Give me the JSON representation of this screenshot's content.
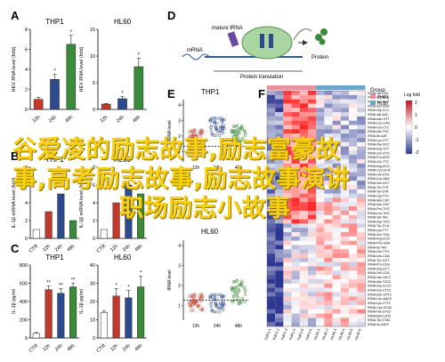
{
  "panel_letters": {
    "A": "A",
    "B": "B",
    "C": "C",
    "D": "D",
    "E": "E",
    "F": "F"
  },
  "panelA": {
    "ylabel": "HEV RNA level (fold)",
    "left": {
      "title": "THP1",
      "categories": [
        "12h",
        "24h",
        "48h"
      ],
      "values": [
        1.0,
        3.0,
        6.5
      ],
      "errors": [
        0.2,
        0.5,
        0.9
      ],
      "yticks": [
        "0",
        "2",
        "4",
        "6",
        "8"
      ],
      "colors": [
        "#c0392b",
        "#2e4a8f",
        "#3a8a3a"
      ],
      "stars": [
        "",
        "*",
        "*"
      ]
    },
    "right": {
      "title": "HL60",
      "categories": [
        "12h",
        "24h",
        "48h"
      ],
      "values": [
        1.0,
        2.0,
        8.0
      ],
      "errors": [
        0.1,
        0.4,
        1.6
      ],
      "yticks": [
        "0",
        "5",
        "10",
        "15"
      ],
      "colors": [
        "#c0392b",
        "#2e4a8f",
        "#3a8a3a"
      ],
      "stars": [
        "",
        "*",
        "*"
      ]
    }
  },
  "panelB": {
    "ylabel": "IL-1β mRNA level (fold)",
    "left": {
      "title": "THP1",
      "categories": [
        "CTR",
        "12h",
        "24h",
        "48h"
      ],
      "values": [
        1.0,
        3.0,
        5.0,
        2.0
      ],
      "yticks": [
        "0",
        "2",
        "4",
        "6",
        "8"
      ],
      "colors": [
        "#ffffff",
        "#c0392b",
        "#2e4a8f",
        "#3a8a3a"
      ]
    },
    "right": {
      "title": "HL60",
      "categories": [
        "CTR",
        "12h",
        "24h",
        "48h"
      ],
      "values": [
        1.0,
        4.0,
        6.0,
        5.0
      ],
      "yticks": [
        "0",
        "2",
        "4",
        "6",
        "8"
      ],
      "colors": [
        "#ffffff",
        "#c0392b",
        "#2e4a8f",
        "#3a8a3a"
      ]
    }
  },
  "panelC": {
    "ylabel": "IL-1β pg/ml",
    "left": {
      "title": "THP1",
      "categories": [
        "CTR",
        "12h",
        "24h",
        "48h"
      ],
      "values": [
        50,
        530,
        490,
        560
      ],
      "errors": [
        10,
        40,
        50,
        40
      ],
      "yticks": [
        "0",
        "200",
        "400",
        "600",
        "800"
      ],
      "colors": [
        "#ffffff",
        "#c0392b",
        "#2e4a8f",
        "#3a8a3a"
      ],
      "stars": [
        "",
        "**",
        "**",
        "**"
      ]
    },
    "right": {
      "title": "HL60",
      "categories": [
        "CTR",
        "12h",
        "24h",
        "48h"
      ],
      "values": [
        14,
        23,
        22,
        28
      ],
      "errors": [
        1,
        4,
        4,
        6
      ],
      "yticks": [
        "0",
        "10",
        "20",
        "30",
        "40"
      ],
      "colors": [
        "#ffffff",
        "#c0392b",
        "#2e4a8f",
        "#3a8a3a"
      ],
      "stars": [
        "",
        "*",
        "*",
        "*"
      ]
    }
  },
  "panelD": {
    "mature_trna": "mature tRNA",
    "mrna": "mRNA",
    "protein": "Protein",
    "protein_translation": "Protein translation"
  },
  "panelE": {
    "top_title": "THP1",
    "bottom_title": "HL60",
    "top_ylabel": "tRNA level",
    "bottom_ylabel": "tRNA level",
    "top_yticks": [
      "4",
      "3",
      "2",
      "1"
    ],
    "bottom_yticks": [
      "4",
      "3",
      "2",
      "1"
    ],
    "categories": [
      "12h",
      "24h",
      "48h"
    ],
    "colors": [
      "#c0392b",
      "#2e4a8f",
      "#3a8a3a"
    ]
  },
  "panelF": {
    "legend_title": "Group",
    "legend_items": [
      {
        "label": "THP1",
        "color": "#e8919a"
      },
      {
        "label": "HL60",
        "color": "#6aa6c8"
      }
    ],
    "scale_title": "Log fold",
    "scale_ticks": [
      "2",
      "1",
      "0",
      "-1",
      "-2"
    ],
    "rows": [
      "tRNA-Val-CAC",
      "tRNA-Ala-AGC",
      "tRNA-Thr-AGT",
      "tRNA-Ser-AGA",
      "tRNA-Gly-CCC",
      "tRNA-Val-AAC",
      "tRNA-Asn-GTT",
      "tRNA-Leu-CAG",
      "tRNA-Glu-CTC",
      "tRNA-Ala-TGC",
      "tRNA-Ile-AAT",
      "tRNA-Lys-CTT",
      "tRNA-Gly-GCC",
      "tRNA-Arg-TCT",
      "tRNA-Gln-CTG",
      "tRNA-Pro-AGG",
      "tRNA-Glu-TTC",
      "tRNA-Arg-ACG",
      "tRNA-Cys-GCA",
      "tRNA-His-GTG",
      "tRNA-Leu-AAG",
      "tRNA-Ser-GCT",
      "tRNA-Thr-TGT",
      "tRNA-Tyr-GTA",
      "tRNA-Gly-TCC",
      "tRNA-Met-CAT",
      "tRNA-Ala-CGC",
      "tRNA-Pro-TGG",
      "tRNA-Leu-TAG",
      "tRNA-Val-TAC",
      "tRNA-Asp-GTC",
      "tRNA-Trp-CCA",
      "tRNA-Lys-TTT",
      "tRNA-Ser-TGA",
      "tRNA-Arg-CCG",
      "tRNA-Phe-GAA",
      "tRNA-Ile-TAT",
      "tRNA-Gln-TTG",
      "tRNA-Leu-CAA",
      "tRNA-Thr-CGT",
      "tRNA-Pro-CGG",
      "tRNA-Arg-CCT",
      "tRNA-Ser-CGA",
      "tRNA-Val-CAC2",
      "tRNA-Ala-TGC2",
      "tRNA-Gly-CCC2",
      "tRNA-Glu-CTC2",
      "tRNA-Asn-GTT2",
      "tRNA-Leu-AAG2",
      "tRNA-Lys-CTT2",
      "tRNA-Cys-GCA2",
      "tRNA-His-GTG2",
      "tRNA-Met-CAT2",
      "tRNA-Tyr-GTA2",
      "tRNA-Ile-AAT2"
    ],
    "cols": [
      "THP1-1",
      "THP1-2",
      "THP1-3",
      "THP1-4",
      "THP1-5",
      "THP1-6",
      "HL60-1",
      "HL60-2",
      "HL60-3",
      "HL60-4",
      "HL60-5",
      "HL60-6"
    ]
  },
  "overlay": {
    "line1": "谷爱凌的励志故事,励志富豪故",
    "line2": "事,高考励志故事,励志故事演讲",
    "line3": "职场励志小故事"
  }
}
